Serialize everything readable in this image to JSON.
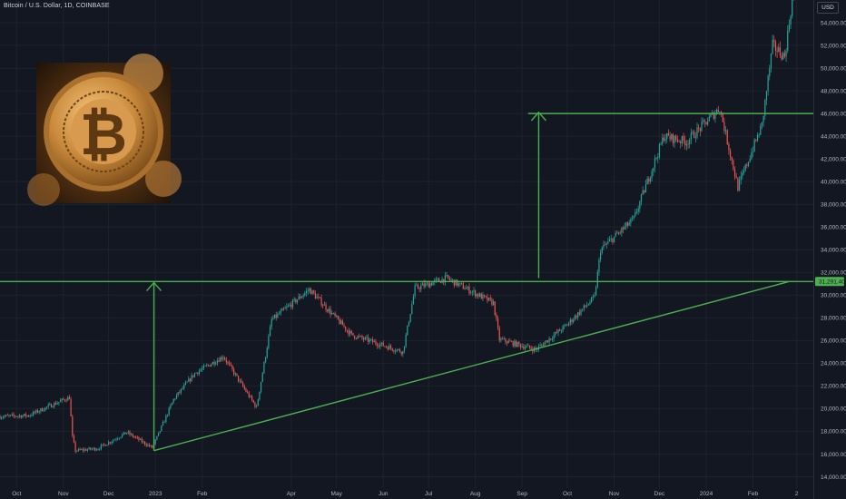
{
  "header": {
    "symbol_title": "Bitcoin / U.S. Dollar, 1D, COINBASE",
    "currency": "USD"
  },
  "colors": {
    "background": "#131722",
    "grid": "#1e222d",
    "up": "#26a69a",
    "down": "#ef5350",
    "drawing": "#4caf50",
    "axis_text": "#b2b5be"
  },
  "chart_data": {
    "type": "candlestick",
    "title": "Bitcoin / U.S. Dollar, 1D, COINBASE",
    "y_axis": {
      "ticks": [
        "14,000.00",
        "16,000.00",
        "18,000.00",
        "20,000.00",
        "22,000.00",
        "24,000.00",
        "26,000.00",
        "28,000.00",
        "30,000.00",
        "32,000.00",
        "34,000.00",
        "36,000.00",
        "38,000.00",
        "40,000.00",
        "42,000.00",
        "44,000.00",
        "46,000.00",
        "48,000.00",
        "50,000.00",
        "52,000.00",
        "54,000.00"
      ],
      "range": [
        13000,
        56000
      ],
      "position": "right"
    },
    "x_axis": {
      "ticks": [
        {
          "label": "Oct",
          "date": "2022-10-01"
        },
        {
          "label": "Nov",
          "date": "2022-11-01"
        },
        {
          "label": "Dec",
          "date": "2022-12-01"
        },
        {
          "label": "2023",
          "date": "2023-01-01"
        },
        {
          "label": "Feb",
          "date": "2023-02-01"
        },
        {
          "label": "Apr",
          "date": "2023-04-01"
        },
        {
          "label": "May",
          "date": "2023-05-01"
        },
        {
          "label": "Jun",
          "date": "2023-06-01"
        },
        {
          "label": "Jul",
          "date": "2023-07-01"
        },
        {
          "label": "Aug",
          "date": "2023-08-01"
        },
        {
          "label": "Sep",
          "date": "2023-09-01"
        },
        {
          "label": "Oct",
          "date": "2023-10-01"
        },
        {
          "label": "Nov",
          "date": "2023-11-01"
        },
        {
          "label": "Dec",
          "date": "2023-12-01"
        },
        {
          "label": "2024",
          "date": "2024-01-01"
        },
        {
          "label": "Feb",
          "date": "2024-02-01"
        },
        {
          "label": "2",
          "date": "2024-03-01"
        }
      ],
      "range": [
        "2022-09-20",
        "2024-03-12"
      ]
    },
    "price_path": [
      [
        "2022-09-20",
        19300
      ],
      [
        "2022-10-10",
        19400
      ],
      [
        "2022-10-25",
        20300
      ],
      [
        "2022-11-06",
        21000
      ],
      [
        "2022-11-08",
        17500
      ],
      [
        "2022-11-10",
        16300
      ],
      [
        "2022-11-25",
        16500
      ],
      [
        "2022-12-14",
        17900
      ],
      [
        "2022-12-31",
        16550
      ],
      [
        "2023-01-14",
        20800
      ],
      [
        "2023-01-28",
        23100
      ],
      [
        "2023-02-16",
        24600
      ],
      [
        "2023-03-10",
        20100
      ],
      [
        "2023-03-20",
        27800
      ],
      [
        "2023-04-14",
        30500
      ],
      [
        "2023-05-12",
        26500
      ],
      [
        "2023-06-15",
        25000
      ],
      [
        "2023-06-23",
        30600
      ],
      [
        "2023-07-14",
        31500
      ],
      [
        "2023-08-14",
        29300
      ],
      [
        "2023-08-18",
        26100
      ],
      [
        "2023-09-11",
        25200
      ],
      [
        "2023-10-01",
        27300
      ],
      [
        "2023-10-20",
        29800
      ],
      [
        "2023-10-24",
        34000
      ],
      [
        "2023-11-15",
        36700
      ],
      [
        "2023-12-05",
        44000
      ],
      [
        "2023-12-20",
        43500
      ],
      [
        "2024-01-11",
        46500
      ],
      [
        "2024-01-23",
        39500
      ],
      [
        "2024-02-08",
        45000
      ],
      [
        "2024-02-15",
        52000
      ],
      [
        "2024-02-23",
        51000
      ],
      [
        "2024-02-28",
        56000
      ]
    ],
    "current_price_label": "31,291.40",
    "annotations": [
      {
        "type": "horizontal-line",
        "name": "resistance-line",
        "value": 31200
      },
      {
        "type": "horizontal-line",
        "name": "target-line",
        "value": 46000,
        "from": "2023-09-05"
      },
      {
        "type": "trend-line",
        "name": "ascending-support",
        "from": [
          "2022-12-31",
          16300
        ],
        "to": [
          "2024-02-25",
          31200
        ]
      },
      {
        "type": "arrow",
        "name": "breakout-arrow-1",
        "date": "2022-12-31",
        "from_value": 16300,
        "to_value": 31100
      },
      {
        "type": "arrow",
        "name": "breakout-arrow-2",
        "date": "2023-09-12",
        "from_value": 31500,
        "to_value": 46100
      }
    ],
    "grid": true,
    "legend": "none"
  },
  "inset_image": {
    "name": "bitcoin-coin-photo",
    "symbol": "₿"
  }
}
